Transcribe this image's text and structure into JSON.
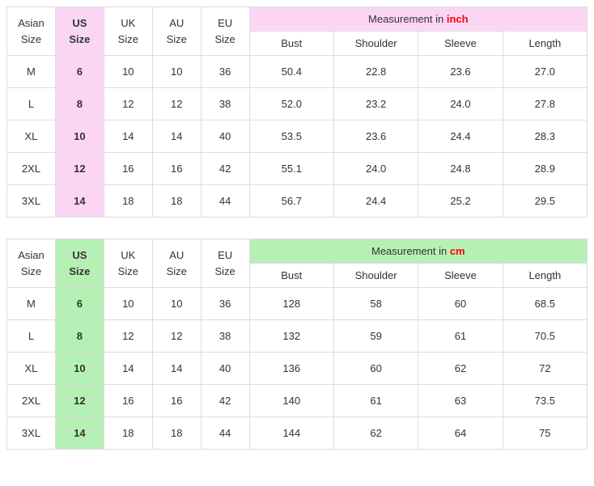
{
  "tables": [
    {
      "highlight_bg": "#fbd6f4",
      "unit_label": "inch",
      "unit_color": "#ff0000",
      "headers": {
        "asian": "Asian\nSize",
        "us": "US\nSize",
        "uk": "UK\nSize",
        "au": "AU\nSize",
        "eu": "EU\nSize",
        "measurement_prefix": "Measurement in ",
        "bust": "Bust",
        "shoulder": "Shoulder",
        "sleeve": "Sleeve",
        "length": "Length"
      },
      "rows": [
        {
          "asian": "M",
          "us": "6",
          "uk": "10",
          "au": "10",
          "eu": "36",
          "bust": "50.4",
          "shoulder": "22.8",
          "sleeve": "23.6",
          "length": "27.0"
        },
        {
          "asian": "L",
          "us": "8",
          "uk": "12",
          "au": "12",
          "eu": "38",
          "bust": "52.0",
          "shoulder": "23.2",
          "sleeve": "24.0",
          "length": "27.8"
        },
        {
          "asian": "XL",
          "us": "10",
          "uk": "14",
          "au": "14",
          "eu": "40",
          "bust": "53.5",
          "shoulder": "23.6",
          "sleeve": "24.4",
          "length": "28.3"
        },
        {
          "asian": "2XL",
          "us": "12",
          "uk": "16",
          "au": "16",
          "eu": "42",
          "bust": "55.1",
          "shoulder": "24.0",
          "sleeve": "24.8",
          "length": "28.9"
        },
        {
          "asian": "3XL",
          "us": "14",
          "uk": "18",
          "au": "18",
          "eu": "44",
          "bust": "56.7",
          "shoulder": "24.4",
          "sleeve": "25.2",
          "length": "29.5"
        }
      ]
    },
    {
      "highlight_bg": "#b7f0b4",
      "unit_label": "cm",
      "unit_color": "#ff0000",
      "headers": {
        "asian": "Asian\nSize",
        "us": "US\nSize",
        "uk": "UK\nSize",
        "au": "AU\nSize",
        "eu": "EU\nSize",
        "measurement_prefix": "Measurement in ",
        "bust": "Bust",
        "shoulder": "Shoulder",
        "sleeve": "Sleeve",
        "length": "Length"
      },
      "rows": [
        {
          "asian": "M",
          "us": "6",
          "uk": "10",
          "au": "10",
          "eu": "36",
          "bust": "128",
          "shoulder": "58",
          "sleeve": "60",
          "length": "68.5"
        },
        {
          "asian": "L",
          "us": "8",
          "uk": "12",
          "au": "12",
          "eu": "38",
          "bust": "132",
          "shoulder": "59",
          "sleeve": "61",
          "length": "70.5"
        },
        {
          "asian": "XL",
          "us": "10",
          "uk": "14",
          "au": "14",
          "eu": "40",
          "bust": "136",
          "shoulder": "60",
          "sleeve": "62",
          "length": "72"
        },
        {
          "asian": "2XL",
          "us": "12",
          "uk": "16",
          "au": "16",
          "eu": "42",
          "bust": "140",
          "shoulder": "61",
          "sleeve": "63",
          "length": "73.5"
        },
        {
          "asian": "3XL",
          "us": "14",
          "uk": "18",
          "au": "18",
          "eu": "44",
          "bust": "144",
          "shoulder": "62",
          "sleeve": "64",
          "length": "75"
        }
      ]
    }
  ]
}
